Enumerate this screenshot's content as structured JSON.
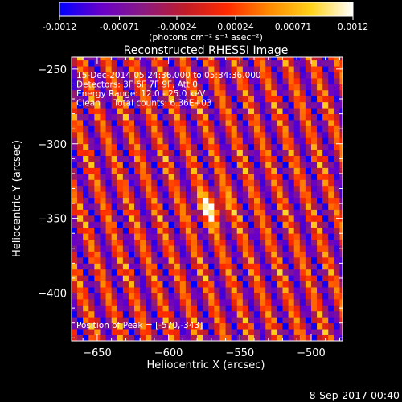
{
  "colorbar": {
    "tick_labels": [
      "-0.0012",
      "-0.00071",
      "-0.00024",
      "0.00024",
      "0.00071",
      "0.0012"
    ],
    "tick_values": [
      -0.0012,
      -0.00071,
      -0.00024,
      0.00024,
      0.00071,
      0.0012
    ],
    "unit_label": "(photons cm⁻² s⁻¹ asec⁻²)",
    "range": [
      -0.0012,
      0.0012
    ],
    "colormap": [
      "#0000ff",
      "#6a00c8",
      "#8a1a82",
      "#c01c28",
      "#ff2a00",
      "#ff8a00",
      "#ffd21a",
      "#ffffff"
    ]
  },
  "chart_data": {
    "type": "heatmap",
    "title": "Reconstructed RHESSI Image",
    "xlabel": "Heliocentric X (arcsec)",
    "ylabel": "Heliocentric Y (arcsec)",
    "xlim": [
      -668,
      -478
    ],
    "ylim": [
      -432,
      -242
    ],
    "xticks": [
      -650,
      -600,
      -550,
      -500
    ],
    "yticks": [
      -250,
      -300,
      -350,
      -400
    ],
    "xtick_labels": [
      "−650",
      "−600",
      "−550",
      "−500"
    ],
    "ytick_labels": [
      "−250",
      "−300",
      "−350",
      "−400"
    ],
    "annotations": [
      "15-Dec-2014 05:24:36.000 to 05:34:36.000",
      "Detectors: 3F 6F 7F 9F, Att 0",
      "Energy Range: 12.0 - 25.0 keV",
      "Clean     Total counts: 6.36E+03"
    ],
    "peak_label": "Position of Peak = [-570,-343]",
    "peak": [
      -570,
      -343
    ],
    "pixel_size_arcsec": 4,
    "stripe_period_arcsec": 18,
    "stripe_slope": 0.35
  },
  "footer": {
    "timestamp": "8-Sep-2017 00:40"
  }
}
